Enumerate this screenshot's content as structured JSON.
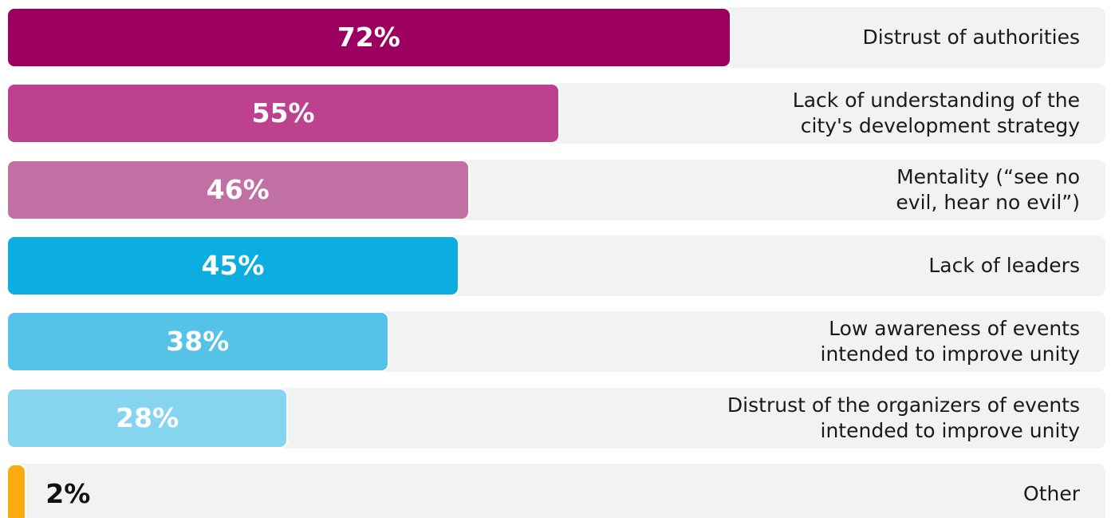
{
  "chart_data": {
    "type": "bar",
    "orientation": "horizontal",
    "categories": [
      "Distrust of authorities",
      "Lack of understanding of the\ncity's development strategy",
      "Mentality (“see no\nevil, hear no evil”)",
      "Lack of leaders",
      "Low awareness of events\nintended to improve unity",
      "Distrust of the organizers of events\nintended to improve unity",
      "Other"
    ],
    "values": [
      72,
      55,
      46,
      45,
      38,
      28,
      2
    ],
    "value_labels": [
      "72%",
      "55%",
      "46%",
      "45%",
      "38%",
      "28%",
      "2%"
    ],
    "colors": [
      "#9b0061",
      "#be4190",
      "#c170a3",
      "#0caee0",
      "#55c3e8",
      "#86d5f0",
      "#f9ab10"
    ],
    "xlim": [
      0,
      100
    ]
  }
}
